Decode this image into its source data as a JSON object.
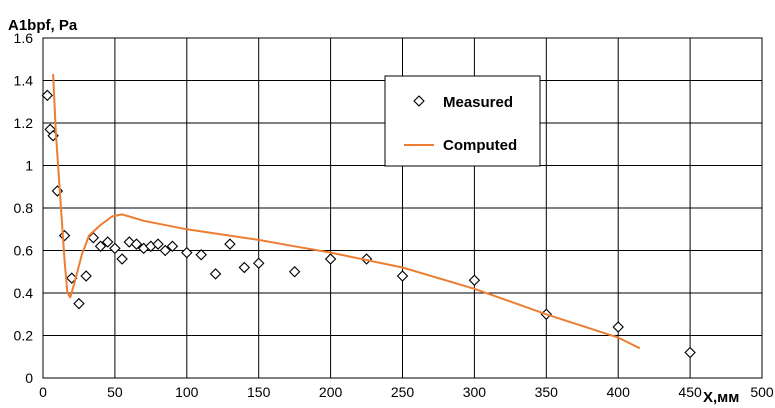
{
  "chart_data": {
    "type": "scatter",
    "ylabel": "A1bpf, Pa",
    "xlabel": "X,мм",
    "xlim": [
      0,
      500
    ],
    "ylim": [
      0,
      1.6
    ],
    "xticks": [
      "0",
      "50",
      "100",
      "150",
      "200",
      "250",
      "300",
      "350",
      "400",
      "450",
      "500"
    ],
    "yticks": [
      "0",
      "0.2",
      "0.4",
      "0.6",
      "0.8",
      "1",
      "1.2",
      "1.4",
      "1.6"
    ],
    "grid": true,
    "legend_position": "top-right",
    "series": [
      {
        "name": "Measured",
        "kind": "scatter",
        "marker": "diamond",
        "color": "#000000",
        "points": [
          [
            3,
            1.33
          ],
          [
            5,
            1.17
          ],
          [
            7,
            1.14
          ],
          [
            10,
            0.88
          ],
          [
            15,
            0.67
          ],
          [
            20,
            0.47
          ],
          [
            25,
            0.35
          ],
          [
            30,
            0.48
          ],
          [
            35,
            0.66
          ],
          [
            40,
            0.62
          ],
          [
            45,
            0.64
          ],
          [
            50,
            0.61
          ],
          [
            55,
            0.56
          ],
          [
            60,
            0.64
          ],
          [
            65,
            0.63
          ],
          [
            70,
            0.61
          ],
          [
            75,
            0.62
          ],
          [
            80,
            0.63
          ],
          [
            85,
            0.6
          ],
          [
            90,
            0.62
          ],
          [
            100,
            0.59
          ],
          [
            110,
            0.58
          ],
          [
            120,
            0.49
          ],
          [
            130,
            0.63
          ],
          [
            140,
            0.52
          ],
          [
            150,
            0.54
          ],
          [
            175,
            0.5
          ],
          [
            200,
            0.56
          ],
          [
            225,
            0.56
          ],
          [
            250,
            0.48
          ],
          [
            300,
            0.46
          ],
          [
            350,
            0.3
          ],
          [
            400,
            0.24
          ],
          [
            450,
            0.12
          ]
        ]
      },
      {
        "name": "Computed",
        "kind": "line",
        "color": "#ed7d31",
        "points": [
          [
            7,
            1.43
          ],
          [
            9,
            1.15
          ],
          [
            11,
            0.95
          ],
          [
            13,
            0.75
          ],
          [
            15,
            0.55
          ],
          [
            17,
            0.4
          ],
          [
            19,
            0.38
          ],
          [
            22,
            0.45
          ],
          [
            27,
            0.58
          ],
          [
            32,
            0.67
          ],
          [
            40,
            0.72
          ],
          [
            48,
            0.76
          ],
          [
            55,
            0.77
          ],
          [
            70,
            0.74
          ],
          [
            100,
            0.7
          ],
          [
            150,
            0.65
          ],
          [
            175,
            0.62
          ],
          [
            200,
            0.59
          ],
          [
            250,
            0.52
          ],
          [
            300,
            0.42
          ],
          [
            350,
            0.3
          ],
          [
            400,
            0.19
          ],
          [
            415,
            0.14
          ]
        ]
      }
    ]
  }
}
